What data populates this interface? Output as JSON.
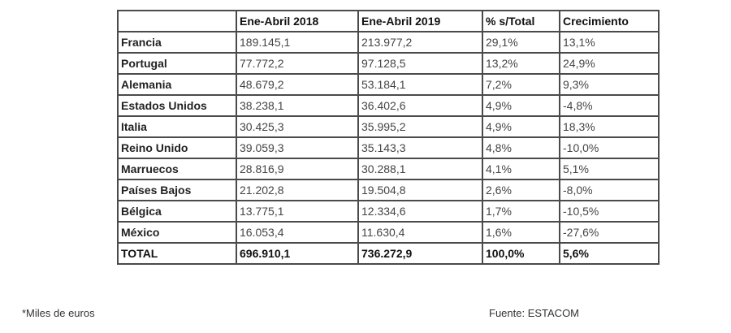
{
  "table": {
    "headers": [
      "",
      "Ene-Abril 2018",
      "Ene-Abril 2019",
      "% s/Total",
      "Crecimiento"
    ],
    "rows": [
      [
        "Francia",
        "189.145,1",
        "213.977,2",
        "29,1%",
        "13,1%"
      ],
      [
        "Portugal",
        "77.772,2",
        "97.128,5",
        "13,2%",
        "24,9%"
      ],
      [
        "Alemania",
        "48.679,2",
        "53.184,1",
        "7,2%",
        "9,3%"
      ],
      [
        "Estados Unidos",
        "38.238,1",
        "36.402,6",
        "4,9%",
        "-4,8%"
      ],
      [
        "Italia",
        "30.425,3",
        "35.995,2",
        "4,9%",
        "18,3%"
      ],
      [
        "Reino Unido",
        "39.059,3",
        "35.143,3",
        "4,8%",
        "-10,0%"
      ],
      [
        "Marruecos",
        "28.816,9",
        "30.288,1",
        "4,1%",
        "5,1%"
      ],
      [
        "Países Bajos",
        "21.202,8",
        "19.504,8",
        "2,6%",
        "-8,0%"
      ],
      [
        "Bélgica",
        "13.775,1",
        "12.334,6",
        "1,7%",
        "-10,5%"
      ],
      [
        "México",
        "16.053,4",
        "11.630,4",
        "1,6%",
        "-27,6%"
      ]
    ],
    "total": [
      "TOTAL",
      "696.910,1",
      "736.272,9",
      "100,0%",
      "5,6%"
    ]
  },
  "footnote": "*Miles de euros",
  "source": "Fuente: ESTACOM"
}
